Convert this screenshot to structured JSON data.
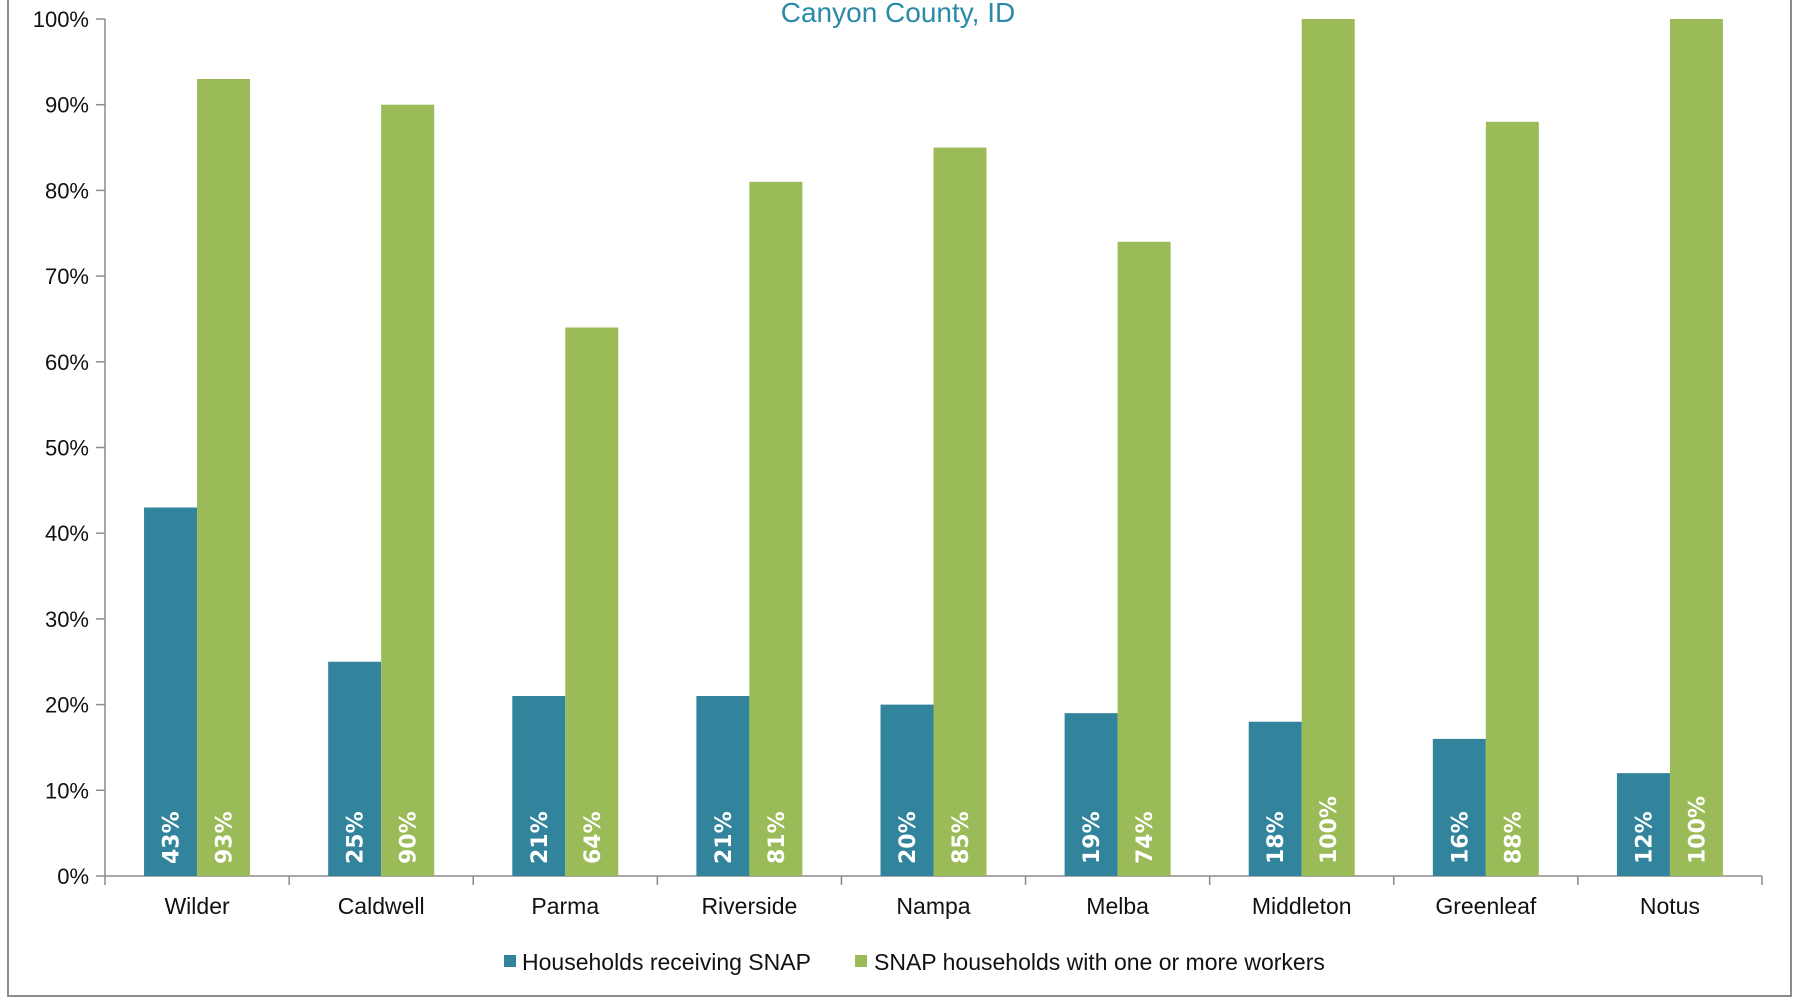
{
  "chart_data": {
    "type": "bar",
    "title": "Canyon County, ID",
    "categories": [
      "Wilder",
      "Caldwell",
      "Parma",
      "Riverside",
      "Nampa",
      "Melba",
      "Middleton",
      "Greenleaf",
      "Notus"
    ],
    "series": [
      {
        "name": "Households receiving SNAP",
        "color": "#31849b",
        "values": [
          43,
          25,
          21,
          21,
          20,
          19,
          18,
          16,
          12
        ],
        "labels": [
          "43%",
          "25%",
          "21%",
          "21%",
          "20%",
          "19%",
          "18%",
          "16%",
          "12%"
        ]
      },
      {
        "name": "SNAP households with one or more workers",
        "color": "#9bbb59",
        "values": [
          93,
          90,
          64,
          81,
          85,
          74,
          100,
          88,
          100
        ],
        "labels": [
          "93%",
          "90%",
          "64%",
          "81%",
          "85%",
          "74%",
          "100%",
          "88%",
          "100%"
        ]
      }
    ],
    "yticks": [
      "0%",
      "10%",
      "20%",
      "30%",
      "40%",
      "50%",
      "60%",
      "70%",
      "80%",
      "90%",
      "100%"
    ],
    "ylim": [
      0,
      100
    ],
    "xlabel": "",
    "ylabel": "",
    "grid": false,
    "legend_position": "bottom"
  }
}
